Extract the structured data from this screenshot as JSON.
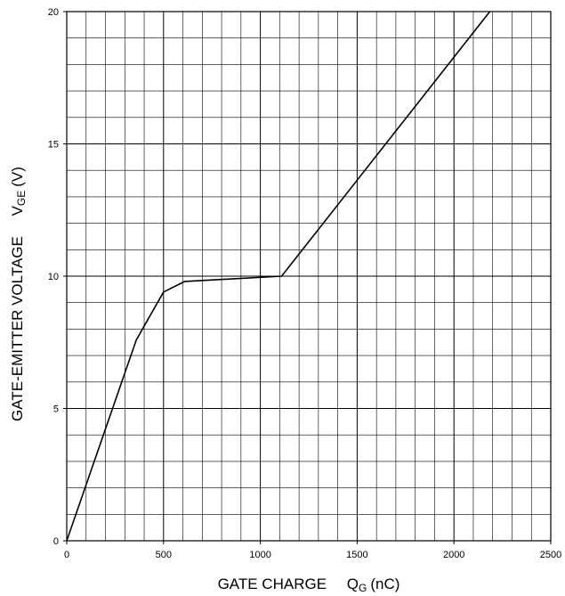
{
  "chart_data": {
    "type": "line",
    "xlabel": {
      "text": "GATE CHARGE",
      "symbol": "Q",
      "symbol_sub": "G",
      "unit": "(nC)"
    },
    "ylabel": {
      "text": "GATE-EMITTER VOLTAGE",
      "symbol": "V",
      "symbol_sub": "GE",
      "unit": "(V)"
    },
    "xlim": [
      0,
      2500
    ],
    "ylim": [
      0,
      20
    ],
    "x_ticks": [
      0,
      500,
      1000,
      1500,
      2000,
      2500
    ],
    "y_ticks": [
      0,
      5,
      10,
      15,
      20
    ],
    "x_minor_step": 100,
    "y_minor_step": 1,
    "grid": true,
    "series": [
      {
        "points": [
          [
            0,
            0
          ],
          [
            360,
            7.6
          ],
          [
            500,
            9.4
          ],
          [
            610,
            9.8
          ],
          [
            1110,
            10.0
          ],
          [
            2185,
            20.0
          ]
        ],
        "color": "#000000"
      }
    ]
  }
}
